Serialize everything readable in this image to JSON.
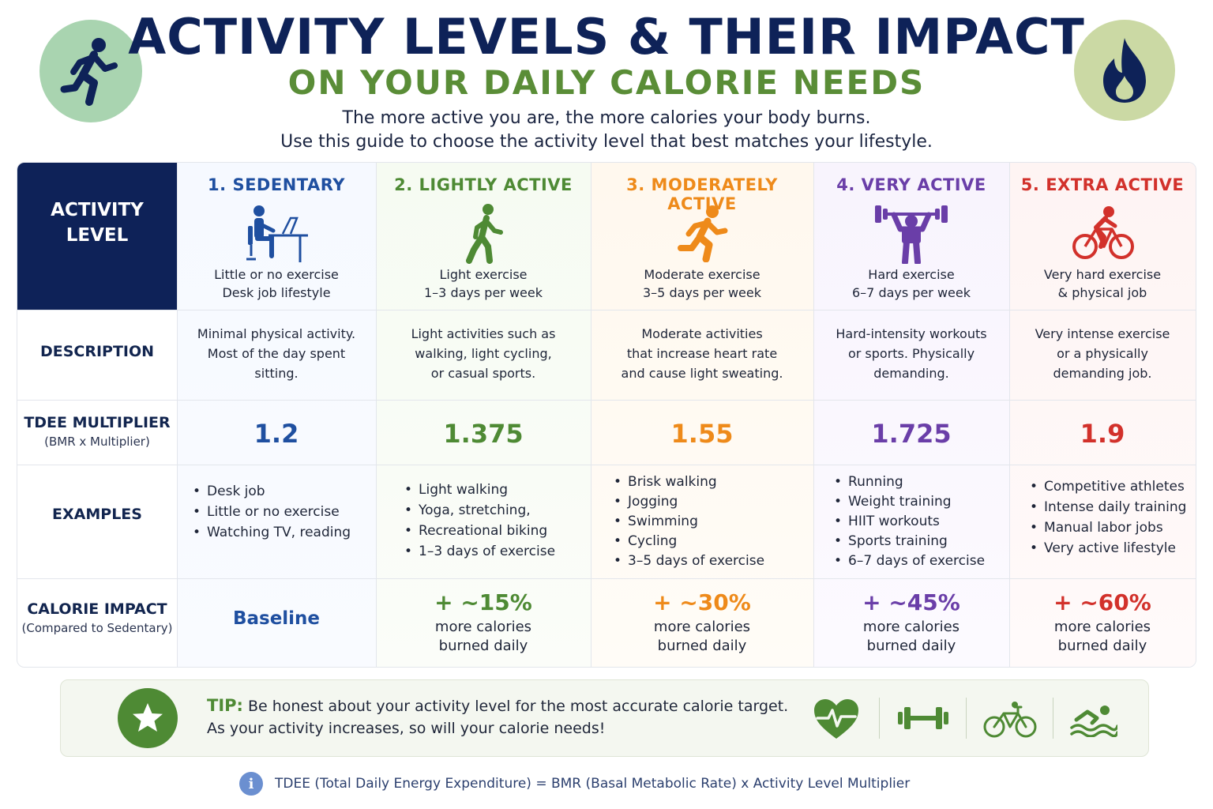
{
  "header": {
    "title": "ACTIVITY LEVELS & THEIR IMPACT",
    "subtitle": "ON YOUR DAILY CALORIE NEEDS",
    "intro_line1": "The more active you are, the more calories your body burns.",
    "intro_line2": "Use this guide to choose the activity level that best matches your lifestyle.",
    "left_icon": "running-person-icon",
    "right_icon": "flame-icon"
  },
  "row_labels": {
    "activity_level": "ACTIVITY LEVEL",
    "description": "DESCRIPTION",
    "multiplier": "TDEE MULTIPLIER",
    "multiplier_sub": "(BMR x Multiplier)",
    "examples": "EXAMPLES",
    "impact": "CALORIE IMPACT",
    "impact_sub": "(Compared to Sedentary)"
  },
  "levels": [
    {
      "title": "1. SEDENTARY",
      "color": "#1f4fa0",
      "icon": "desk-worker-icon",
      "sub1": "Little or no exercise",
      "sub2": "Desk job lifestyle",
      "desc1": "Minimal physical activity.",
      "desc2": "Most of the day spent",
      "desc3": "sitting.",
      "multiplier": "1.2",
      "examples": [
        "Desk job",
        "Little or no exercise",
        "Watching TV, reading"
      ],
      "impact_big": "Baseline",
      "impact_line1": "",
      "impact_line2": ""
    },
    {
      "title": "2. LIGHTLY ACTIVE",
      "color": "#4e8a34",
      "icon": "walking-person-icon",
      "sub1": "Light exercise",
      "sub2": "1–3 days per week",
      "desc1": "Light activities such as",
      "desc2": "walking, light cycling,",
      "desc3": "or casual sports.",
      "multiplier": "1.375",
      "examples": [
        "Light walking",
        "Yoga, stretching,",
        "Recreational biking",
        "1–3 days of exercise"
      ],
      "impact_big": "+ ~15%",
      "impact_line1": "more calories",
      "impact_line2": "burned daily"
    },
    {
      "title": "3. MODERATELY ACTIVE",
      "color": "#ee8a1a",
      "icon": "jogging-person-icon",
      "sub1": "Moderate exercise",
      "sub2": "3–5 days per week",
      "desc1": "Moderate activities",
      "desc2": "that increase heart rate",
      "desc3": "and cause light sweating.",
      "multiplier": "1.55",
      "examples": [
        "Brisk walking",
        "Jogging",
        "Swimming",
        "Cycling",
        "3–5 days of exercise"
      ],
      "impact_big": "+ ~30%",
      "impact_line1": "more calories",
      "impact_line2": "burned daily"
    },
    {
      "title": "4. VERY ACTIVE",
      "color": "#6a3ea8",
      "icon": "weightlifter-icon",
      "sub1": "Hard exercise",
      "sub2": "6–7 days per week",
      "desc1": "Hard-intensity workouts",
      "desc2": "or sports. Physically",
      "desc3": "demanding.",
      "multiplier": "1.725",
      "examples": [
        "Running",
        "Weight training",
        "HIIT workouts",
        "Sports training",
        "6–7 days of exercise"
      ],
      "impact_big": "+ ~45%",
      "impact_line1": "more calories",
      "impact_line2": "burned daily"
    },
    {
      "title": "5. EXTRA ACTIVE",
      "color": "#d2312b",
      "icon": "cyclist-icon",
      "sub1": "Very hard exercise",
      "sub2": "& physical job",
      "desc1": "Very intense exercise",
      "desc2": "or a physically",
      "desc3": "demanding job.",
      "multiplier": "1.9",
      "examples": [
        "Competitive athletes",
        "Intense daily training",
        "Manual labor jobs",
        "Very active lifestyle"
      ],
      "impact_big": "+ ~60%",
      "impact_line1": "more calories",
      "impact_line2": "burned daily"
    }
  ],
  "tip": {
    "label": "TIP:",
    "line1": "Be honest about your activity level for the most accurate calorie target.",
    "line2": "As your activity increases, so will your calorie needs!",
    "icons": [
      "star-icon",
      "heart-pulse-icon",
      "dumbbell-icon",
      "bicycle-icon",
      "swimmer-icon"
    ]
  },
  "footer": {
    "text": "TDEE (Total Daily Energy Expenditure) = BMR (Basal Metabolic Rate) x Activity Level Multiplier",
    "icon": "info-icon"
  },
  "colors": {
    "navy": "#0e2258",
    "green": "#5a8d37",
    "tip_green": "#4e8a34"
  }
}
